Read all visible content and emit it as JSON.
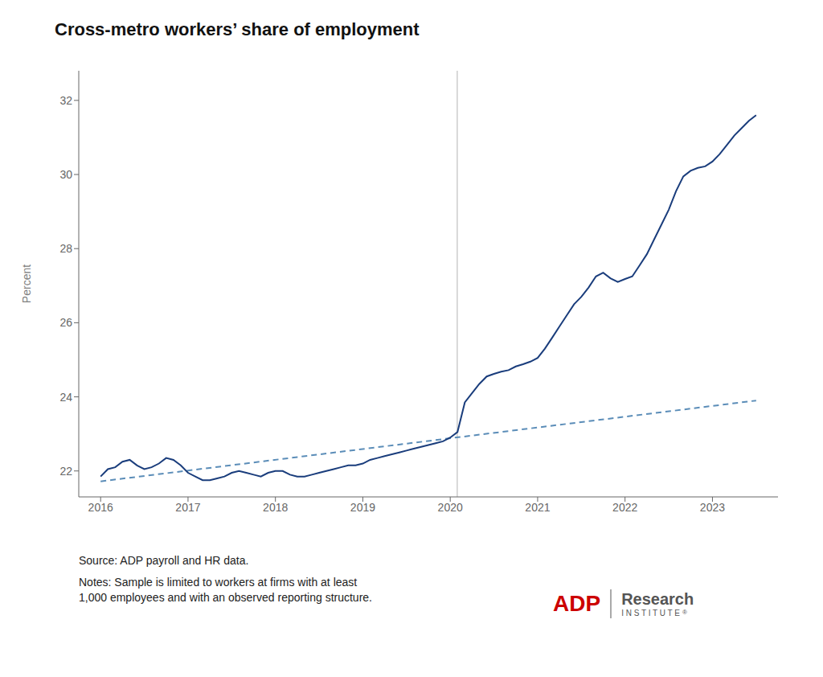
{
  "chart_data": {
    "type": "line",
    "title": "Cross-metro workers’ share of employment",
    "ylabel": "Percent",
    "source": "Source: ADP payroll and HR data.",
    "notes": "Notes: Sample is limited to workers at firms with at least\n1,000 employees and with an observed reporting structure.",
    "xlim": [
      2015.75,
      2023.75
    ],
    "xticks": [
      2016,
      2017,
      2018,
      2019,
      2020,
      2021,
      2022,
      2023
    ],
    "ylim": [
      21.3,
      32.8
    ],
    "yticks": [
      22,
      24,
      26,
      28,
      30,
      32
    ],
    "grid": false,
    "vlines": [
      {
        "x": 2020.08,
        "color": "#cccccc"
      }
    ],
    "series": [
      {
        "color": "#5b8db8",
        "line_style": "dashed",
        "x": [
          2016.0,
          2023.5
        ],
        "values": [
          21.72,
          23.9
        ]
      },
      {
        "color": "#1a3d7c",
        "line_style": "solid",
        "x": [
          2016.0,
          2016.083,
          2016.167,
          2016.25,
          2016.333,
          2016.417,
          2016.5,
          2016.583,
          2016.667,
          2016.75,
          2016.833,
          2016.917,
          2017.0,
          2017.083,
          2017.167,
          2017.25,
          2017.333,
          2017.417,
          2017.5,
          2017.583,
          2017.667,
          2017.75,
          2017.833,
          2017.917,
          2018.0,
          2018.083,
          2018.167,
          2018.25,
          2018.333,
          2018.417,
          2018.5,
          2018.583,
          2018.667,
          2018.75,
          2018.833,
          2018.917,
          2019.0,
          2019.083,
          2019.167,
          2019.25,
          2019.333,
          2019.417,
          2019.5,
          2019.583,
          2019.667,
          2019.75,
          2019.833,
          2019.917,
          2020.0,
          2020.083,
          2020.167,
          2020.25,
          2020.333,
          2020.417,
          2020.5,
          2020.583,
          2020.667,
          2020.75,
          2020.833,
          2020.917,
          2021.0,
          2021.083,
          2021.167,
          2021.25,
          2021.333,
          2021.417,
          2021.5,
          2021.583,
          2021.667,
          2021.75,
          2021.833,
          2021.917,
          2022.0,
          2022.083,
          2022.167,
          2022.25,
          2022.333,
          2022.417,
          2022.5,
          2022.583,
          2022.667,
          2022.75,
          2022.833,
          2022.917,
          2023.0,
          2023.083,
          2023.167,
          2023.25,
          2023.333,
          2023.417,
          2023.5
        ],
        "values": [
          21.85,
          22.05,
          22.1,
          22.25,
          22.3,
          22.15,
          22.05,
          22.1,
          22.2,
          22.35,
          22.3,
          22.15,
          21.95,
          21.85,
          21.75,
          21.75,
          21.8,
          21.85,
          21.95,
          22.0,
          21.95,
          21.9,
          21.85,
          21.95,
          22.0,
          22.0,
          21.9,
          21.85,
          21.85,
          21.9,
          21.95,
          22.0,
          22.05,
          22.1,
          22.15,
          22.15,
          22.2,
          22.3,
          22.35,
          22.4,
          22.45,
          22.5,
          22.55,
          22.6,
          22.65,
          22.7,
          22.75,
          22.8,
          22.9,
          23.05,
          23.85,
          24.1,
          24.35,
          24.55,
          24.62,
          24.68,
          24.72,
          24.82,
          24.88,
          24.95,
          25.05,
          25.3,
          25.6,
          25.9,
          26.2,
          26.5,
          26.7,
          26.95,
          27.25,
          27.35,
          27.2,
          27.1,
          27.18,
          27.25,
          27.55,
          27.85,
          28.25,
          28.65,
          29.05,
          29.55,
          29.95,
          30.1,
          30.18,
          30.22,
          30.35,
          30.55,
          30.8,
          31.05,
          31.25,
          31.45,
          31.6
        ]
      }
    ],
    "annotations": [
      {
        "text": "ADP",
        "color": "#cc0000"
      },
      {
        "text": "Research",
        "color": "#555555"
      },
      {
        "text": "I N S T I T U T E",
        "color": "#555555"
      },
      {
        "text": "®",
        "color": "#555555"
      }
    ]
  }
}
